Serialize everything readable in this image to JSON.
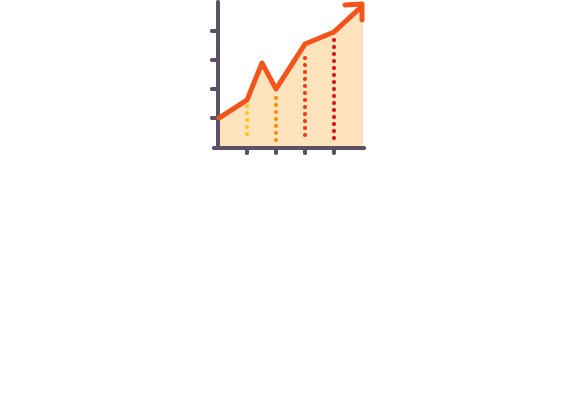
{
  "icon": {
    "name": "growth-chart-icon",
    "colors": {
      "axis": "#5b5064",
      "trend_line": "#f2541b",
      "fill": "#ffe3bd",
      "dot_series": [
        "#ffc61b",
        "#f98f0a",
        "#ef3b1e",
        "#d9102b"
      ]
    }
  }
}
